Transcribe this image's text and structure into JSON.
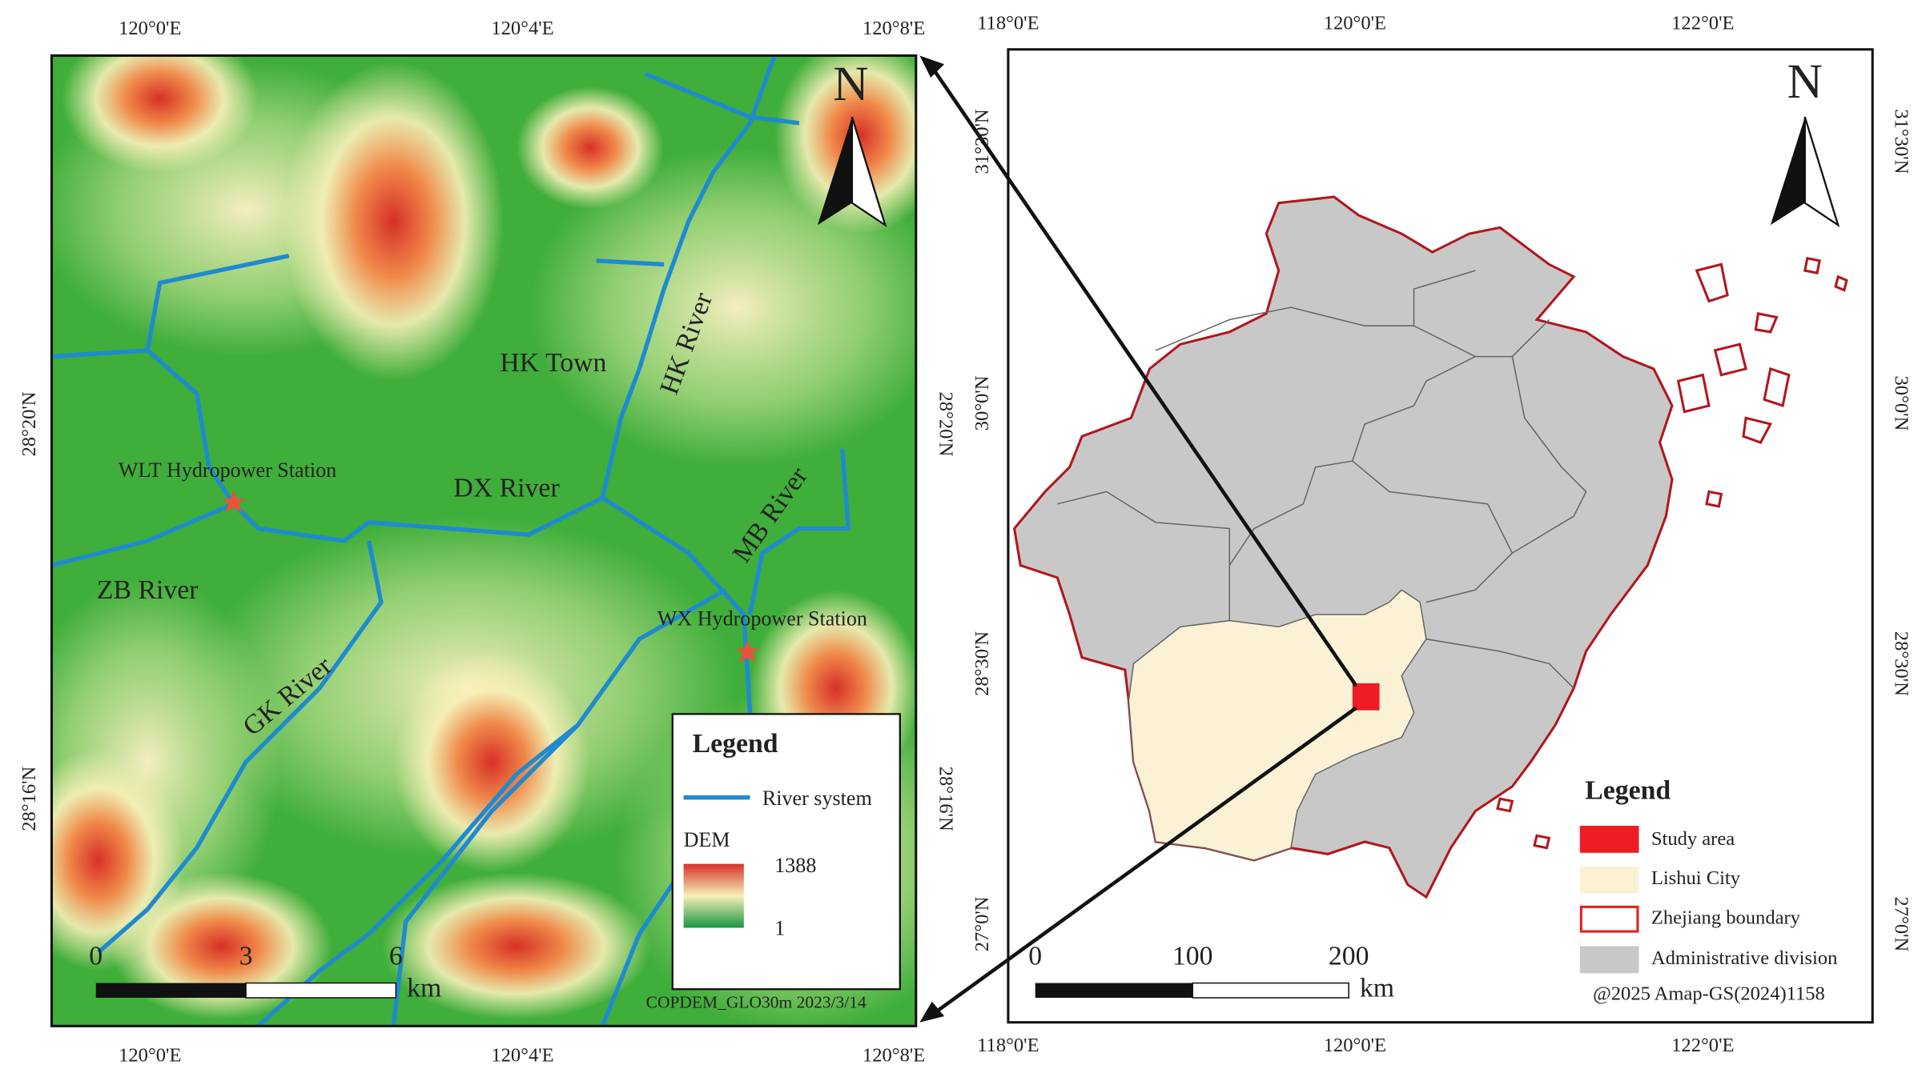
{
  "left_map": {
    "x_ticks": [
      "120°0'E",
      "120°4'E",
      "120°8'E"
    ],
    "y_ticks": [
      "28°20'N",
      "28°16'N"
    ],
    "north": "N",
    "labels": [
      "HK Town",
      "HK River",
      "DX River",
      "MB River",
      "WLT Hydropower Station",
      "ZB River",
      "GK River",
      "WX Hydropower Station"
    ],
    "legend": {
      "title": "Legend",
      "river": "River system",
      "dem": "DEM",
      "dem_max": "1388",
      "dem_min": "1"
    },
    "scale": {
      "ticks": [
        "0",
        "3",
        "6"
      ],
      "unit": "km"
    },
    "source": "COPDEM_GLO30m  2023/3/14"
  },
  "right_map": {
    "x_ticks": [
      "118°0'E",
      "120°0'E",
      "122°0'E"
    ],
    "y_ticks": [
      "31°30'N",
      "30°0'N",
      "28°30'N",
      "27°0'N"
    ],
    "north": "N",
    "legend": {
      "title": "Legend",
      "items": [
        "Study area",
        "Lishui City",
        "Zhejiang boundary",
        "Administrative division"
      ],
      "credit": "@2025 Amap-GS(2024)1158"
    },
    "scale": {
      "ticks": [
        "0",
        "100",
        "200"
      ],
      "unit": "km"
    }
  }
}
